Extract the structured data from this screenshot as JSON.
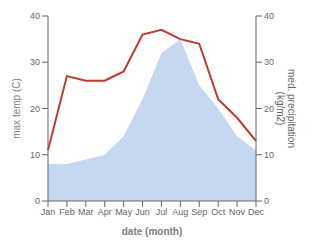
{
  "chart_data": {
    "type": "line",
    "categories": [
      "Jan",
      "Feb",
      "Mar",
      "Apr",
      "May",
      "Jun",
      "Jul",
      "Aug",
      "Sep",
      "Oct",
      "Nov",
      "Dec"
    ],
    "series": [
      {
        "type": "area",
        "color": "#c5d8f0",
        "axis": "y2",
        "values": [
          8,
          8,
          9,
          10,
          14,
          22,
          32,
          35,
          25,
          20,
          14,
          11
        ]
      },
      {
        "type": "line",
        "color": "#c0392b",
        "values": [
          11,
          27,
          26,
          26,
          28,
          36,
          37,
          35,
          34,
          22,
          18,
          13
        ]
      }
    ],
    "xlabel": "date (month)",
    "ylabel": "max temp (C)",
    "y2label": "med. precipitation\n(kg/m2)",
    "ylim": [
      0,
      40
    ],
    "yticks": [
      0,
      10,
      20,
      30,
      40
    ],
    "y2lim": [
      0,
      40
    ],
    "y2ticks": [
      0,
      10,
      20,
      30,
      40
    ],
    "grid": false
  }
}
